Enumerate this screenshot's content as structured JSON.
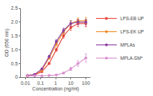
{
  "chart_data": {
    "type": "line",
    "x_label": "Concentration (ng/ml)",
    "y_label": "OD (650 nm)",
    "log": "x",
    "grid": false,
    "legend": "right",
    "marker": "circle",
    "line_style": "solid",
    "x": [
      0.0137,
      0.041,
      0.123,
      0.37,
      1.11,
      3.33,
      10,
      30,
      100
    ],
    "xlim": [
      0.005,
      200
    ],
    "xticks": [
      0.01,
      0.1,
      1,
      10,
      100
    ],
    "ylim": [
      0,
      2.5
    ],
    "yticks": [
      0,
      0.5,
      {
        "value": 1,
        "label": "1.0"
      },
      1.5,
      {
        "value": 2,
        "label": "2.0"
      },
      2.5
    ],
    "series": [
      {
        "name": "LPS-EB UP",
        "color": "#e8453c",
        "values": [
          0.05,
          0.08,
          0.2,
          0.5,
          1.0,
          1.5,
          1.8,
          1.95,
          1.95
        ],
        "errors": [
          0.01,
          0.01,
          0.02,
          0.04,
          0.06,
          0.08,
          0.1,
          0.12,
          0.12
        ]
      },
      {
        "name": "LPS-EK UP",
        "color": "#f08a24",
        "values": [
          0.06,
          0.1,
          0.25,
          0.7,
          1.2,
          1.65,
          1.95,
          2.05,
          2.05
        ],
        "errors": [
          0.01,
          0.01,
          0.02,
          0.04,
          0.06,
          0.08,
          0.1,
          0.1,
          0.12
        ]
      },
      {
        "name": "MPLAs",
        "color": "#8b3fa0",
        "values": [
          0.06,
          0.1,
          0.3,
          0.75,
          1.3,
          1.7,
          1.95,
          2.0,
          2.0
        ],
        "errors": [
          0.01,
          0.01,
          0.02,
          0.04,
          0.06,
          0.08,
          0.1,
          0.1,
          0.1
        ]
      },
      {
        "name": "MPLA-SM*",
        "color": "#d98fd0",
        "values": [
          0.05,
          0.05,
          0.05,
          0.06,
          0.08,
          0.15,
          0.3,
          0.5,
          0.7
        ],
        "errors": [
          0.01,
          0.01,
          0.01,
          0.01,
          0.02,
          0.03,
          0.06,
          0.1,
          0.15
        ]
      }
    ]
  }
}
